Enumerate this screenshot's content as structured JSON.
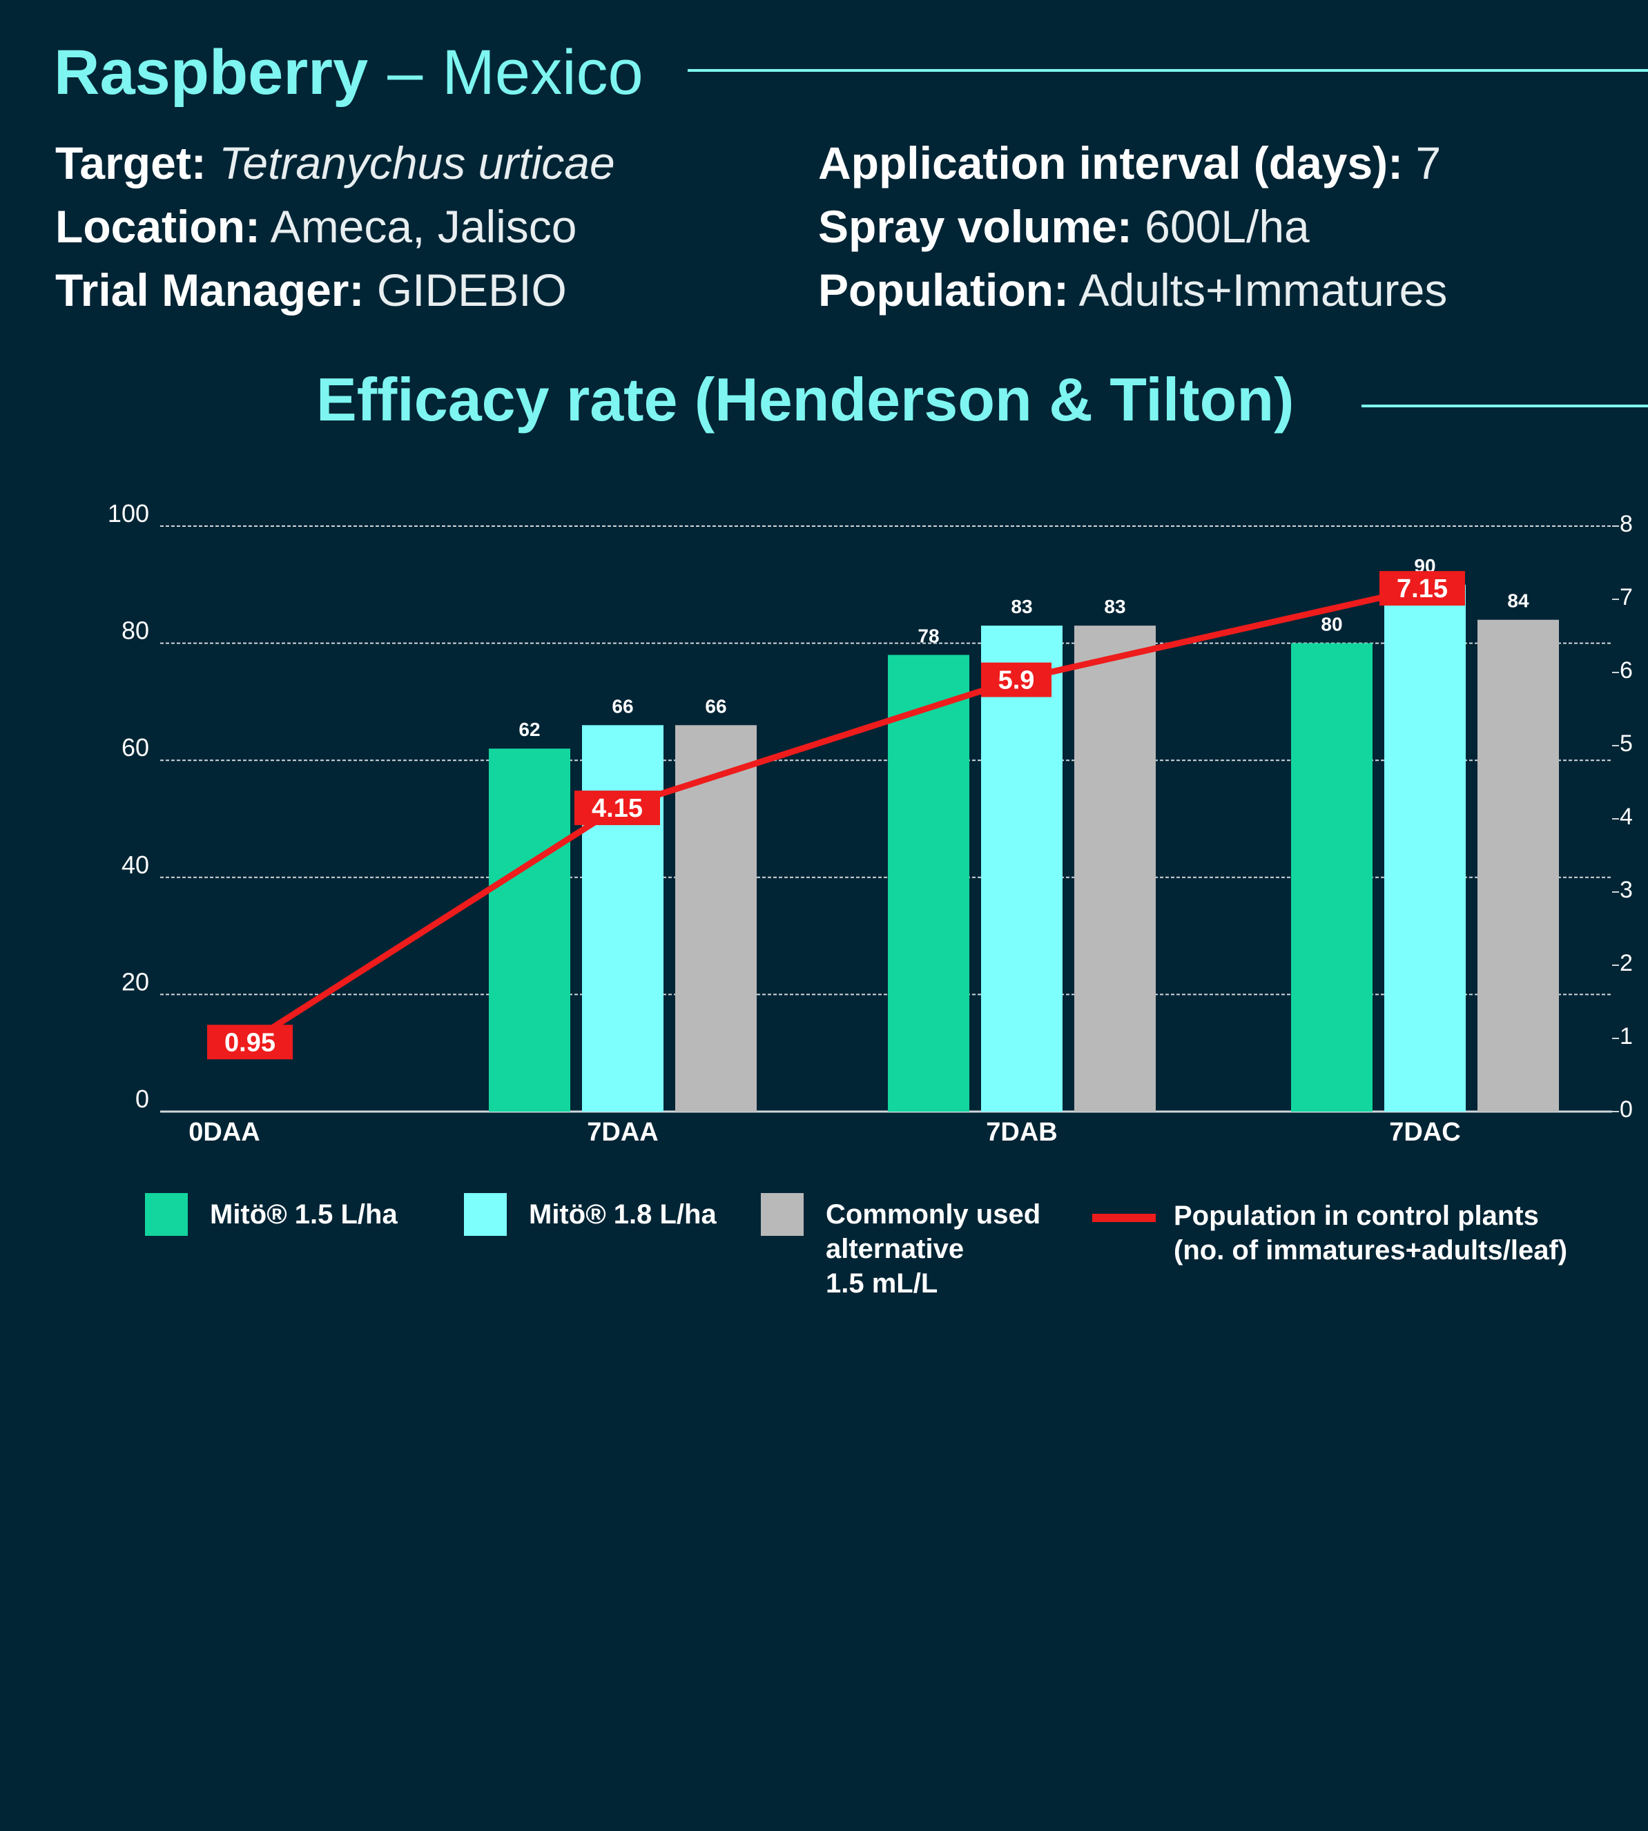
{
  "header": {
    "crop": "Raspberry",
    "dash": "–",
    "country": "Mexico"
  },
  "info": {
    "left": [
      {
        "key": "Target:",
        "value": "Tetranychus urticae",
        "italic": true
      },
      {
        "key": "Location:",
        "value": "Ameca, Jalisco",
        "italic": false
      },
      {
        "key": "Trial Manager:",
        "value": "GIDEBIO",
        "italic": false
      }
    ],
    "right": [
      {
        "key": "Application interval (days):",
        "value": "7",
        "italic": false
      },
      {
        "key": "Spray volume:",
        "value": "600L/ha",
        "italic": false
      },
      {
        "key": "Population:",
        "value": "Adults+Immatures",
        "italic": false
      }
    ]
  },
  "colors": {
    "background": "#022535",
    "accent": "#7ef5f0",
    "mito15": "#13d69e",
    "mito18": "#7dfffd",
    "alternative": "#b9b9b9",
    "control_line": "#ee1c1c"
  },
  "chart_data": {
    "type": "bar",
    "title": "Efficacy rate (Henderson & Tilton)",
    "categories": [
      "0DAA",
      "7DAA",
      "7DAB",
      "7DAC"
    ],
    "series": [
      {
        "name": "Mitö® 1.5 L/ha",
        "values": [
          null,
          62,
          78,
          80
        ]
      },
      {
        "name": "Mitö® 1.8 L/ha",
        "values": [
          null,
          66,
          83,
          90
        ]
      },
      {
        "name": "Commonly used alternative 1.5 mL/L",
        "values": [
          null,
          66,
          83,
          84
        ]
      }
    ],
    "line_series": {
      "name": "Population in control plants (no. of immatures+adults/leaf)",
      "axis": "right",
      "values": [
        0.95,
        4.15,
        5.9,
        7.15
      ],
      "labels": [
        "0.95",
        "4.15",
        "5.9",
        "7.15"
      ]
    },
    "ylim": [
      0,
      100
    ],
    "y_ticks": [
      "0",
      "20",
      "40",
      "60",
      "80",
      "100"
    ],
    "y2lim": [
      0,
      8
    ],
    "y2_ticks": [
      "0",
      "1",
      "2",
      "3",
      "4",
      "5",
      "6",
      "7",
      "8"
    ],
    "grid": true,
    "legend": "bottom"
  },
  "legend": {
    "mito15": "Mitö® 1.5 L/ha",
    "mito18": "Mitö® 1.8 L/ha",
    "alternative": [
      "Commonly used",
      "alternative",
      "1.5 mL/L"
    ],
    "control": [
      "Population in control plants",
      "(no. of immatures+adults/leaf)"
    ]
  }
}
